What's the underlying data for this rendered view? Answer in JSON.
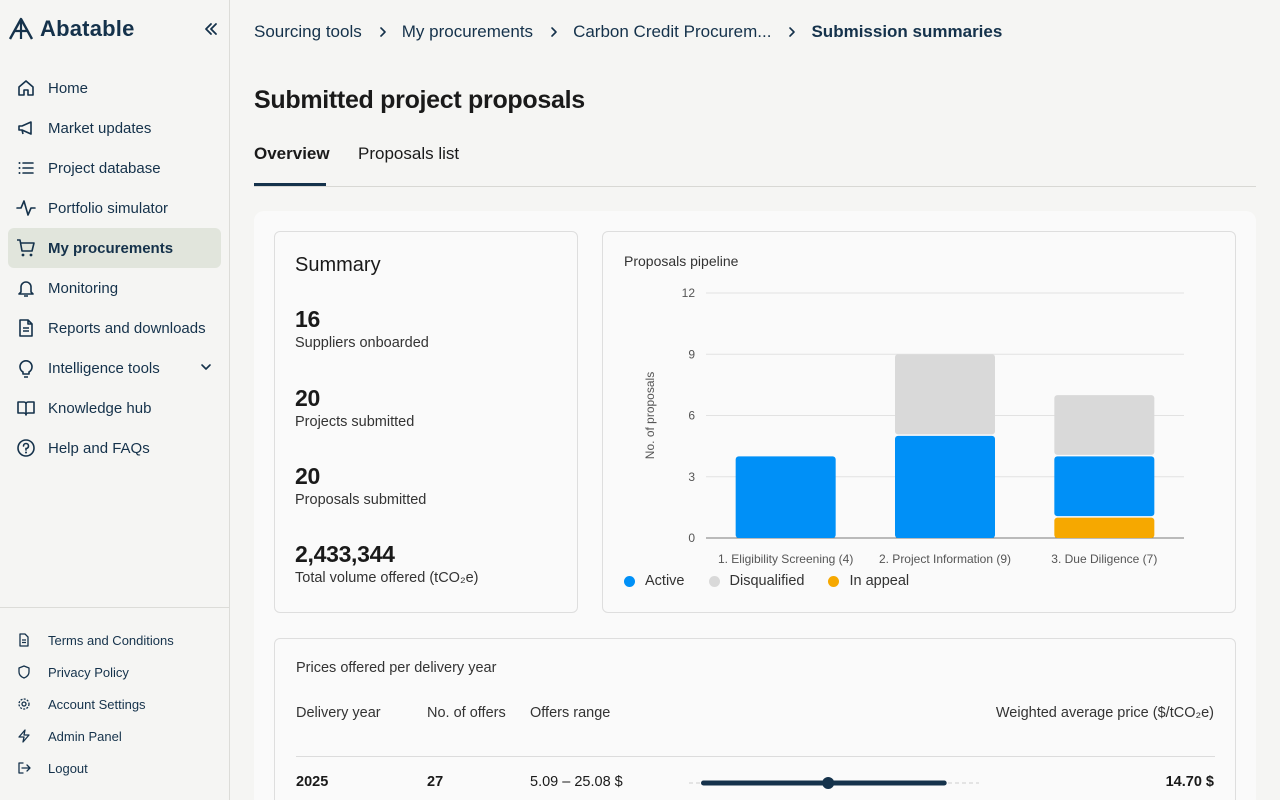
{
  "brand": {
    "name": "Abatable"
  },
  "sidebar": {
    "items": [
      {
        "label": "Home",
        "icon": "home-icon"
      },
      {
        "label": "Market updates",
        "icon": "megaphone-icon"
      },
      {
        "label": "Project database",
        "icon": "list-icon"
      },
      {
        "label": "Portfolio simulator",
        "icon": "activity-icon"
      },
      {
        "label": "My procurements",
        "icon": "cart-icon",
        "active": true
      },
      {
        "label": "Monitoring",
        "icon": "bell-icon"
      },
      {
        "label": "Reports and downloads",
        "icon": "document-icon"
      },
      {
        "label": "Intelligence tools",
        "icon": "lightbulb-icon"
      },
      {
        "label": "Knowledge hub",
        "icon": "book-icon"
      },
      {
        "label": "Help and FAQs",
        "icon": "help-icon"
      }
    ],
    "footer": [
      {
        "label": "Terms and Conditions",
        "icon": "document-icon"
      },
      {
        "label": "Privacy Policy",
        "icon": "shield-icon"
      },
      {
        "label": "Account Settings",
        "icon": "gear-icon"
      },
      {
        "label": "Admin Panel",
        "icon": "bolt-icon"
      },
      {
        "label": "Logout",
        "icon": "logout-icon"
      }
    ]
  },
  "breadcrumb": [
    "Sourcing tools",
    "My procurements",
    "Carbon Credit Procurem...",
    "Submission summaries"
  ],
  "page": {
    "title": "Submitted project proposals",
    "tabs": [
      "Overview",
      "Proposals list"
    ]
  },
  "summary": {
    "title": "Summary",
    "stats": [
      {
        "value": "16",
        "label": "Suppliers onboarded"
      },
      {
        "value": "20",
        "label": "Projects submitted"
      },
      {
        "value": "20",
        "label": "Proposals submitted"
      },
      {
        "value": "2,433,344",
        "label": "Total volume offered (tCO₂e)"
      }
    ]
  },
  "pipeline": {
    "title": "Proposals pipeline"
  },
  "chart_data": {
    "type": "bar",
    "stacked": true,
    "categories": [
      "1. Eligibility Screening (4)",
      "2. Project Information (9)",
      "3. Due Diligence (7)"
    ],
    "series": [
      {
        "name": "In appeal",
        "values": [
          0,
          0,
          1
        ],
        "color": "#f6a800"
      },
      {
        "name": "Active",
        "values": [
          4,
          5,
          3
        ],
        "color": "#0090f7"
      },
      {
        "name": "Disqualified",
        "values": [
          0,
          4,
          3
        ],
        "color": "#d9d9d9"
      }
    ],
    "legend_order": [
      "Active",
      "Disqualified",
      "In appeal"
    ],
    "ylabel": "No. of proposals",
    "yticks": [
      0,
      3,
      6,
      9,
      12
    ],
    "ylim": [
      0,
      12
    ],
    "grid": true,
    "legend_position": "bottom-left"
  },
  "prices": {
    "title": "Prices offered per delivery year",
    "headers": {
      "year": "Delivery year",
      "count": "No. of offers",
      "range": "Offers range",
      "avg": "Weighted average price ($/tCO₂e)"
    },
    "rows": [
      {
        "year": "2025",
        "count": "27",
        "range": "5.09 – 25.08 $",
        "avg": "14.70 $",
        "range_min_fraction": 0.05,
        "range_max_fraction": 0.88,
        "avg_fraction": 0.48
      }
    ]
  },
  "colors": {
    "brand": "#15324b",
    "active_nav": "#e1e5dc",
    "active": "#0090f7",
    "disqualified": "#d9d9d9",
    "appeal": "#f6a800"
  }
}
